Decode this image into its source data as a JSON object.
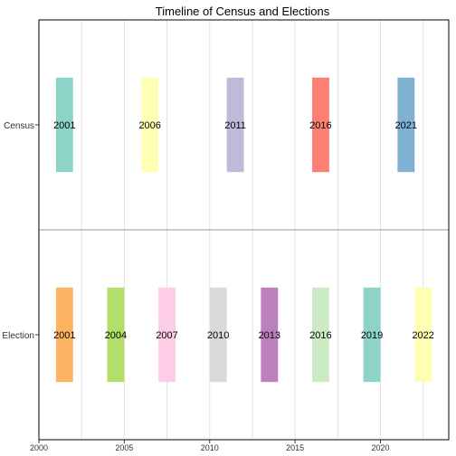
{
  "chart_data": {
    "type": "bar",
    "title": "Timeline of Census and Elections",
    "xlabel": "",
    "ylabel": "",
    "xlim": [
      2000,
      2024
    ],
    "x_ticks": [
      2000,
      2005,
      2010,
      2015,
      2020
    ],
    "x_tick_labels": [
      "2000",
      "2005",
      "2010",
      "2015",
      "2020"
    ],
    "grid": true,
    "bar_width_years": 1,
    "rows": [
      {
        "name": "Census",
        "events": [
          {
            "year": 2001,
            "label": "2001",
            "color": "#8DD3C7"
          },
          {
            "year": 2006,
            "label": "2006",
            "color": "#FFFFB3"
          },
          {
            "year": 2011,
            "label": "2011",
            "color": "#BEBADA"
          },
          {
            "year": 2016,
            "label": "2016",
            "color": "#FB8072"
          },
          {
            "year": 2021,
            "label": "2021",
            "color": "#80B1D3"
          }
        ]
      },
      {
        "name": "Election",
        "events": [
          {
            "year": 2001,
            "label": "2001",
            "color": "#FDB462"
          },
          {
            "year": 2004,
            "label": "2004",
            "color": "#B3DE69"
          },
          {
            "year": 2007,
            "label": "2007",
            "color": "#FCCDE5"
          },
          {
            "year": 2010,
            "label": "2010",
            "color": "#D9D9D9"
          },
          {
            "year": 2013,
            "label": "2013",
            "color": "#BC80BD"
          },
          {
            "year": 2016,
            "label": "2016",
            "color": "#CCEBC5"
          },
          {
            "year": 2019,
            "label": "2019",
            "color": "#8DD3C7"
          },
          {
            "year": 2022,
            "label": "2022",
            "color": "#FFFFB3"
          }
        ]
      }
    ]
  }
}
